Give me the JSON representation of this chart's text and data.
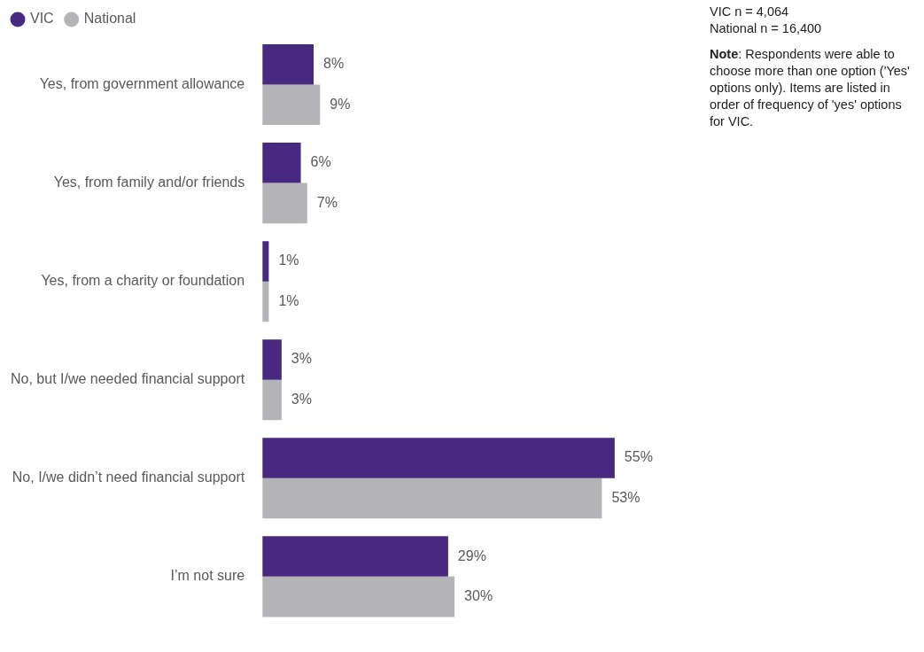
{
  "chart_data": {
    "type": "bar",
    "orientation": "horizontal",
    "categories": [
      "Yes, from government allowance",
      "Yes, from family and/or friends",
      "Yes, from a charity or foundation",
      "No, but I/we needed financial support",
      "No, I/we didn’t need financial support",
      "I’m not sure"
    ],
    "series": [
      {
        "name": "VIC",
        "color": "#472a7f",
        "values": [
          8,
          6,
          1,
          3,
          55,
          29
        ],
        "value_labels": [
          "8%",
          "6%",
          "1%",
          "3%",
          "55%",
          "29%"
        ]
      },
      {
        "name": "National",
        "color": "#b4b4b8",
        "values": [
          9,
          7,
          1,
          3,
          53,
          30
        ],
        "value_labels": [
          "9%",
          "7%",
          "1%",
          "3%",
          "53%",
          "30%"
        ]
      }
    ],
    "legend": "top left",
    "tick_labels": "y",
    "annotations": [
      "VIC n = 4,064",
      "National n = 16,400",
      "Note: Respondents were able to choose more than one option ('Yes' options only). Items are listed in order of frequency of 'yes' options for VIC."
    ]
  }
}
